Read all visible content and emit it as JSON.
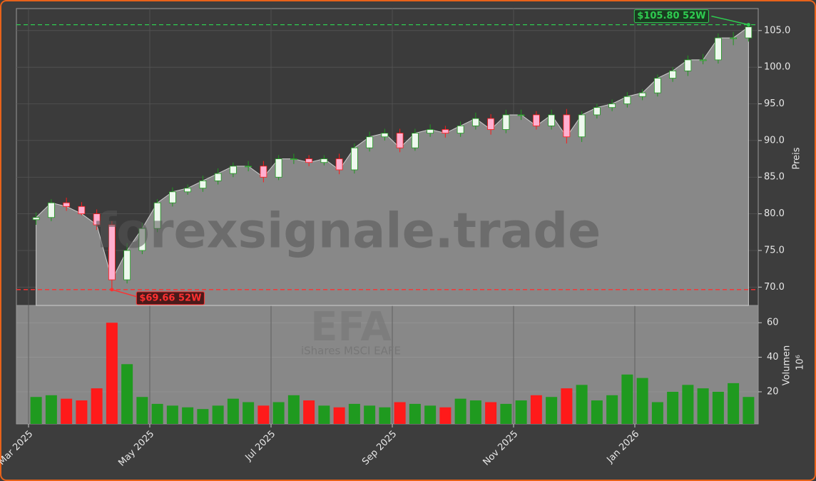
{
  "chart_data": {
    "type": "candlestick",
    "watermark": "forexsignale.trade",
    "ticker": "EFA",
    "subtitle": "iShares MSCI EAFE",
    "ylabel": "Preis",
    "y2label": "Volumen",
    "y2unit": "10⁶",
    "x": [
      "2025-03",
      "2025-03",
      "2025-03",
      "2025-03",
      "2025-04",
      "2025-04",
      "2025-04",
      "2025-04",
      "2025-05",
      "2025-05",
      "2025-05",
      "2025-05",
      "2025-06",
      "2025-06",
      "2025-06",
      "2025-06",
      "2025-07",
      "2025-07",
      "2025-07",
      "2025-07",
      "2025-08",
      "2025-08",
      "2025-08",
      "2025-08",
      "2025-09",
      "2025-09",
      "2025-09",
      "2025-09",
      "2025-10",
      "2025-10",
      "2025-10",
      "2025-10",
      "2025-11",
      "2025-11",
      "2025-11",
      "2025-11",
      "2025-12",
      "2025-12",
      "2025-12",
      "2025-12",
      "2026-01",
      "2026-01",
      "2026-01",
      "2026-01",
      "2026-02",
      "2026-02",
      "2026-02",
      "2026-02"
    ],
    "open": [
      79.2,
      79.5,
      81.5,
      81,
      80,
      78.5,
      71,
      75,
      78,
      81.5,
      83,
      83.5,
      84.5,
      85.5,
      86.5,
      86.5,
      85,
      87.5,
      87.5,
      87,
      87.5,
      86,
      89,
      90.5,
      91,
      89,
      91,
      91.5,
      91,
      92,
      93,
      91.5,
      93.5,
      93.5,
      92,
      93.5,
      90.5,
      93.5,
      94.5,
      95,
      96,
      96.5,
      98.5,
      99.5,
      101,
      101,
      104,
      104
    ],
    "high": [
      80.2,
      82,
      82.2,
      81.6,
      80.6,
      79,
      76,
      78.8,
      82,
      83.6,
      84,
      85.2,
      86.2,
      87,
      87.2,
      87.2,
      88,
      88.2,
      88,
      88,
      88.2,
      89.6,
      91.2,
      91.6,
      91.6,
      91.6,
      92.2,
      92,
      92.6,
      93.8,
      93.6,
      94.2,
      94.2,
      94,
      94.2,
      94.3,
      94,
      95,
      95.6,
      96.6,
      97,
      99,
      100,
      101.6,
      101.8,
      104.6,
      104.8,
      105.8
    ],
    "low": [
      78.5,
      79,
      80.4,
      79.8,
      77.8,
      69.66,
      70.5,
      74.5,
      77.5,
      81,
      82.6,
      83,
      84,
      85,
      85.8,
      84.3,
      84.6,
      86.8,
      86.5,
      86.6,
      85.4,
      85.5,
      88.5,
      90,
      88.4,
      88.6,
      90.5,
      90.4,
      90.5,
      91.5,
      90.8,
      91,
      92.8,
      91.5,
      91.5,
      89.6,
      89.8,
      93,
      94,
      94.5,
      95.5,
      96,
      98,
      98.8,
      100.4,
      100.5,
      103,
      103.5
    ],
    "close": [
      79.5,
      81.5,
      81,
      80,
      78.5,
      71,
      75,
      78,
      81.5,
      83,
      83.5,
      84.5,
      85.5,
      86.5,
      86.5,
      85,
      87.5,
      87.5,
      87,
      87.5,
      86,
      89,
      90.5,
      91,
      89,
      91,
      91.5,
      91,
      92,
      93,
      91.5,
      93.5,
      93.5,
      92,
      93.5,
      90.5,
      93.5,
      94.5,
      95,
      96,
      96.5,
      98.5,
      99.5,
      101,
      101,
      104,
      104,
      105.5
    ],
    "volume": [
      17,
      18,
      16,
      15,
      22,
      60,
      36,
      17,
      13,
      12,
      11,
      10,
      12,
      16,
      14,
      12,
      14,
      18,
      15,
      12,
      11,
      13,
      12,
      11,
      14,
      13,
      12,
      11,
      16,
      15,
      14,
      13,
      15,
      18,
      17,
      22,
      24,
      15,
      18,
      30,
      28,
      14,
      20,
      24,
      22,
      20,
      25,
      17
    ],
    "up_color": "#1f9a1f",
    "down_color": "#ff1a1a",
    "area_color": "#888888",
    "ylim": [
      67.5,
      108
    ],
    "yticks": [
      {
        "value": 70,
        "label": "70.0"
      },
      {
        "value": 75,
        "label": "75.0"
      },
      {
        "value": 80,
        "label": "80.0"
      },
      {
        "value": 85,
        "label": "85.0"
      },
      {
        "value": 90,
        "label": "90.0"
      },
      {
        "value": 95,
        "label": "95.0"
      },
      {
        "value": 100,
        "label": "100.0"
      },
      {
        "value": 105,
        "label": "105.0"
      }
    ],
    "y2lim": [
      1.4,
      70
    ],
    "y2ticks": [
      20,
      40,
      60
    ],
    "xticks": [
      {
        "value": "2025-03",
        "label": "Mar 2025"
      },
      {
        "value": "2025-05",
        "label": "May 2025"
      },
      {
        "value": "2025-07",
        "label": "Jul 2025"
      },
      {
        "value": "2025-09",
        "label": "Sep 2025"
      },
      {
        "value": "2025-11",
        "label": "Nov 2025"
      },
      {
        "value": "2026-01",
        "label": "Jan 2026"
      }
    ],
    "high_52w": {
      "value": 105.8,
      "label": "$105.80 52W",
      "color": "#2ecc50"
    },
    "low_52w": {
      "value": 69.66,
      "label": "$69.66 52W",
      "color": "#ff3030"
    },
    "grid": true
  }
}
